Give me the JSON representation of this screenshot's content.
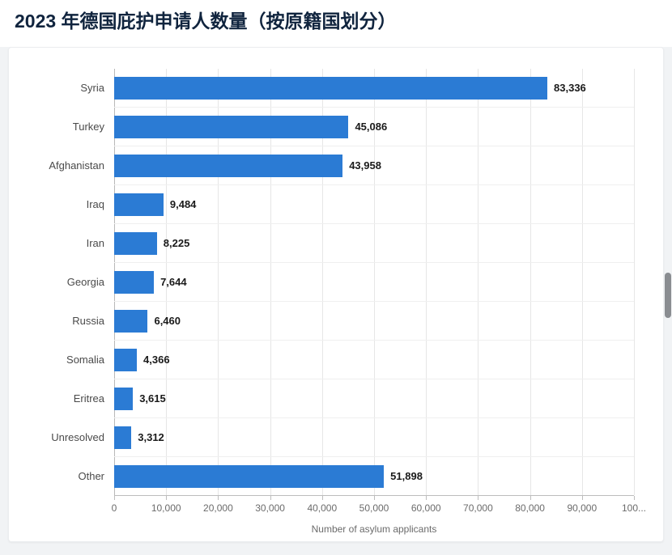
{
  "page": {
    "title": "2023 年德国庇护申请人数量（按原籍国划分）"
  },
  "colors": {
    "bar": "#2b7bd4",
    "title": "#10243e"
  },
  "chart_data": {
    "type": "bar",
    "orientation": "horizontal",
    "title": "2023 年德国庇护申请人数量（按原籍国划分）",
    "categories": [
      "Syria",
      "Turkey",
      "Afghanistan",
      "Iraq",
      "Iran",
      "Georgia",
      "Russia",
      "Somalia",
      "Eritrea",
      "Unresolved",
      "Other"
    ],
    "values": [
      83336,
      45086,
      43958,
      9484,
      8225,
      7644,
      6460,
      4366,
      3615,
      3312,
      51898
    ],
    "value_labels": [
      "83,336",
      "45,086",
      "43,958",
      "9,484",
      "8,225",
      "7,644",
      "6,460",
      "4,366",
      "3,615",
      "3,312",
      "51,898"
    ],
    "xlabel": "Number of asylum applicants",
    "ylabel": "",
    "xlim": [
      0,
      100000
    ],
    "x_ticks": [
      0,
      10000,
      20000,
      30000,
      40000,
      50000,
      60000,
      70000,
      80000,
      90000,
      100000
    ],
    "x_tick_labels": [
      "0",
      "10,000",
      "20,000",
      "30,000",
      "40,000",
      "50,000",
      "60,000",
      "70,000",
      "80,000",
      "90,000",
      "100..."
    ],
    "grid": true,
    "legend": false
  }
}
